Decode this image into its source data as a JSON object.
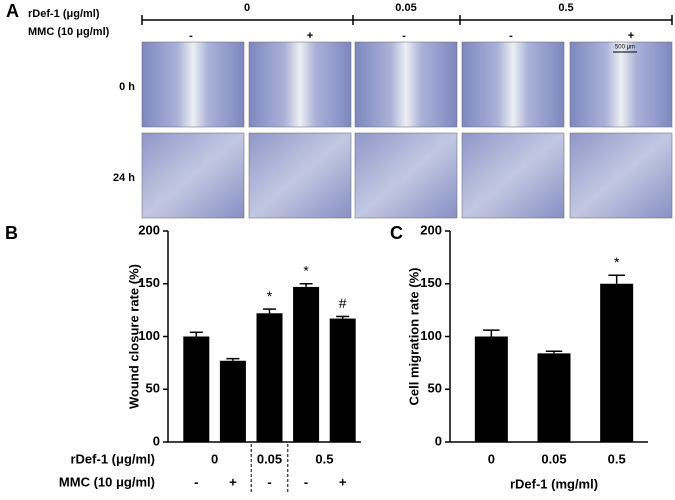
{
  "panel_a": {
    "label": "A",
    "row_labels": [
      "rDef-1 (μg/ml)",
      "MMC (10 μg/ml)"
    ],
    "concentrations": [
      "0",
      "0.05",
      "0.5"
    ],
    "mmc": [
      "-",
      "+",
      "-",
      "-",
      "+"
    ],
    "times": [
      "0 h",
      "24 h"
    ],
    "scale_bar": "500 μm"
  },
  "chart_data": [
    {
      "type": "bar",
      "panel": "B",
      "ylabel": "Wound closure rate (%)",
      "x_row_labels": [
        "rDef-1 (μg/ml)",
        "MMC (10 μg/ml)"
      ],
      "group_labels": [
        "0",
        "0.05",
        "0.5"
      ],
      "categories": [
        "-",
        "+",
        "-",
        "-",
        "+"
      ],
      "values": [
        100,
        77,
        122,
        147,
        117
      ],
      "errors": [
        4,
        2,
        4,
        3,
        2
      ],
      "marks": [
        null,
        null,
        "*",
        "*",
        "#"
      ],
      "color": "#000000",
      "ylim": [
        0,
        200
      ],
      "yticks": [
        0,
        50,
        100,
        150,
        200
      ]
    },
    {
      "type": "bar",
      "panel": "C",
      "ylabel": "Cell migration rate (%)",
      "xlabel": "rDef-1 (mg/ml)",
      "categories": [
        "0",
        "0.05",
        "0.5"
      ],
      "values": [
        100,
        84,
        150
      ],
      "errors": [
        6,
        2,
        8
      ],
      "marks": [
        null,
        null,
        "*"
      ],
      "color": "#000000",
      "ylim": [
        0,
        200
      ],
      "yticks": [
        0,
        50,
        100,
        150,
        200
      ]
    }
  ]
}
